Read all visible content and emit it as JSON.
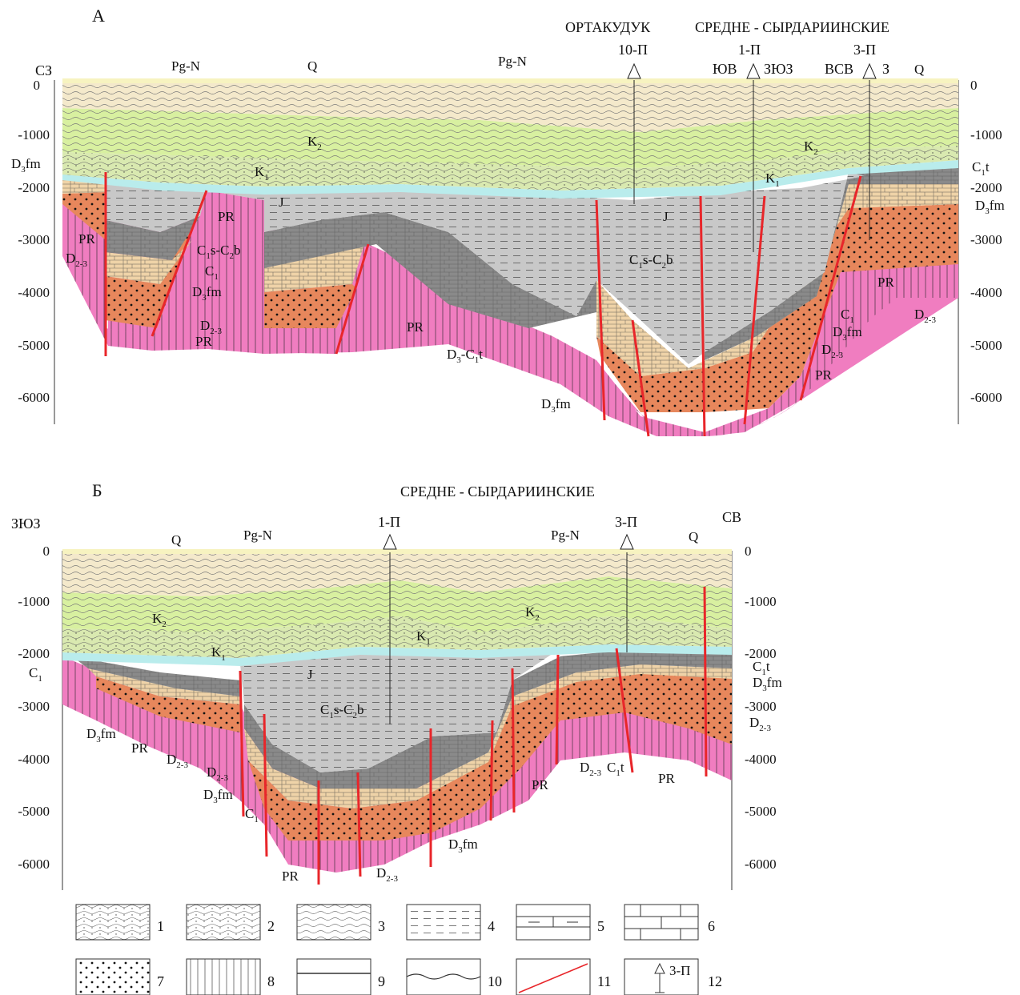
{
  "sectionA": {
    "letter": "А",
    "header_left": "ОРТАКУДУК",
    "header_right": "СРЕДНЕ - СЫРДАРИИНСКИЕ",
    "dir_left": "СЗ",
    "wells": [
      {
        "name": "10-П"
      },
      {
        "name": "1-П",
        "left": "ЮВ",
        "right": "ЗЮЗ"
      },
      {
        "name": "3-П",
        "left": "ВСВ",
        "right": "З"
      }
    ],
    "depth_ticks_left": [
      "0",
      "-1000",
      "-2000",
      "-3000",
      "-4000",
      "-5000",
      "-6000"
    ],
    "depth_ticks_right": [
      "0",
      "-1000",
      "-2000",
      "-3000",
      "-4000",
      "-5000",
      "-6000"
    ],
    "labels": {
      "pgn1": "Pg-N",
      "q1": "Q",
      "pgn2": "Pg-N",
      "q2": "Q",
      "k2a": "K",
      "k2b": "K",
      "k1a": "K",
      "k1b": "K",
      "j1": "J",
      "j2": "J",
      "d3fm_top": "D",
      "pr1": "PR",
      "pr2": "PR",
      "d23a": "D",
      "c1s": "C",
      "c1": "C",
      "d3fm2": "D",
      "d23b": "D",
      "pr3": "PR",
      "pr4": "PR",
      "d3c1t": "D",
      "d3fm3": "D",
      "c1sc2b": "C",
      "c1b": "C",
      "d3fm4": "D",
      "d23c": "D",
      "pr5": "PR",
      "pr6": "PR",
      "d23d": "D",
      "c1t": "C",
      "d3fm5": "D"
    }
  },
  "sectionB": {
    "letter": "Б",
    "header": "СРЕДНЕ - СЫРДАРИИНСКИЕ",
    "dir_left": "ЗЮЗ",
    "dir_right": "СВ",
    "wells": [
      {
        "name": "1-П"
      },
      {
        "name": "3-П"
      }
    ],
    "depth_ticks_left": [
      "0",
      "-1000",
      "-2000",
      "-3000",
      "-4000",
      "-5000",
      "-6000"
    ],
    "depth_ticks_right": [
      "0",
      "-1000",
      "-2000",
      "-3000",
      "-4000",
      "-5000",
      "-6000"
    ],
    "labels": {
      "q1": "Q",
      "pgn1": "Pg-N",
      "pgn2": "Pg-N",
      "q2": "Q",
      "k2a": "K",
      "k2b": "K",
      "k1a": "K",
      "k1b": "K",
      "j": "J",
      "c1a": "C",
      "d3fm1": "D",
      "pr1": "PR",
      "d23a": "D",
      "d23b": "D",
      "d3fm2": "D",
      "c1b": "C",
      "c1sc2b": "C",
      "pr2": "PR",
      "d23c": "D",
      "d3fm3": "D",
      "pr3": "PR",
      "d23d": "D",
      "c1t_mid": "C",
      "pr4": "PR",
      "c1t": "C",
      "d3fm4": "D",
      "d23e": "D"
    }
  },
  "legend": [
    "1",
    "2",
    "3",
    "4",
    "5",
    "6",
    "7",
    "8",
    "9",
    "10",
    "11",
    "12"
  ],
  "legend_well": "3-П",
  "colors": {
    "pgn": "#f4e9cb",
    "k2": "#d8f0a0",
    "k1": "#d9e9b0",
    "j": "#b9ecec",
    "c1sc2b": "#c8c8c8",
    "c1": "#8a8a8a",
    "d3fm": "#efd3a8",
    "d23": "#e7875c",
    "pr": "#f07dc0",
    "fault": "#e8262a"
  }
}
